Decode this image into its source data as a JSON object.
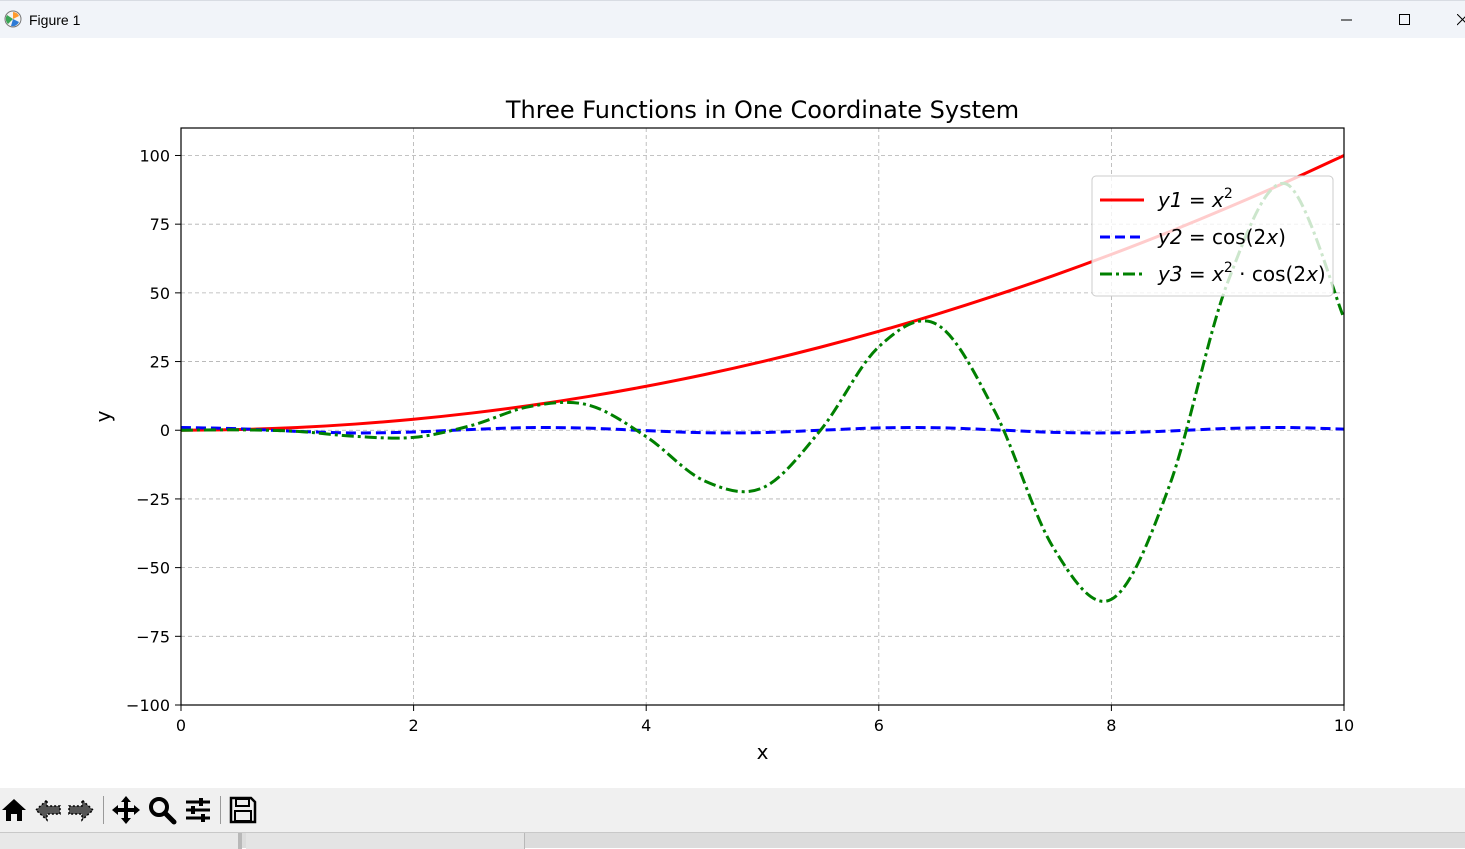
{
  "window": {
    "title": "Figure 1"
  },
  "colors": {
    "y1": "#ff0000",
    "y2": "#0000ff",
    "y3": "#008000",
    "grid": "#b0b0b0"
  },
  "icons": {
    "app": "matplotlib-icon",
    "minimize": "minimize-icon",
    "maximize": "maximize-icon",
    "close": "close-icon",
    "toolbar": [
      "home-icon",
      "back-arrow-icon",
      "forward-arrow-icon",
      "pan-icon",
      "zoom-icon",
      "configure-subplots-icon",
      "save-icon"
    ]
  },
  "chart_data": {
    "type": "line",
    "title": "Three Functions in One Coordinate System",
    "xlabel": "x",
    "ylabel": "y",
    "xlim": [
      0,
      10
    ],
    "ylim": [
      -100,
      110
    ],
    "xticks": [
      0,
      2,
      4,
      6,
      8,
      10
    ],
    "xtick_labels": [
      "0",
      "2",
      "4",
      "6",
      "8",
      "10"
    ],
    "yticks": [
      -100,
      -75,
      -50,
      -25,
      0,
      25,
      50,
      75,
      100
    ],
    "ytick_labels": [
      "−100",
      "−75",
      "−50",
      "−25",
      "0",
      "25",
      "50",
      "75",
      "100"
    ],
    "grid": true,
    "legend": "top-right",
    "x": [
      0,
      0.5,
      1,
      1.5,
      2,
      2.5,
      3,
      3.5,
      4,
      4.5,
      5,
      5.5,
      6,
      6.5,
      7,
      7.5,
      8,
      8.5,
      9,
      9.5,
      10
    ],
    "series": [
      {
        "name": "y1 = x^2",
        "style": "solid",
        "values": [
          0,
          0.25,
          1,
          2.25,
          4,
          6.25,
          9,
          12.25,
          16,
          20.25,
          25,
          30.25,
          36,
          42.25,
          49,
          56.25,
          64,
          72.25,
          81,
          90.25,
          100
        ]
      },
      {
        "name": "y2 = cos(2x)",
        "style": "dashed",
        "values": [
          1,
          0.54,
          -0.42,
          -0.99,
          -0.65,
          0.28,
          0.96,
          0.75,
          -0.15,
          -0.91,
          -0.84,
          0.0,
          0.84,
          0.91,
          0.14,
          -0.76,
          -0.96,
          -0.28,
          0.66,
          0.99,
          0.41
        ]
      },
      {
        "name": "y3 = x^2 · cos(2x)",
        "style": "dashdot",
        "values": [
          0,
          0.14,
          -0.42,
          -2.23,
          -2.61,
          1.77,
          8.64,
          9.2,
          -2.33,
          -18.4,
          -20.98,
          0.07,
          30.38,
          38.49,
          6.64,
          -42.69,
          -61.55,
          -20.06,
          53.84,
          89.7,
          40.81
        ]
      }
    ],
    "legend_entries": [
      {
        "name": "y1",
        "eq": "x",
        "sup": "2",
        "tail": ""
      },
      {
        "name": "y2",
        "eq": "cos(2",
        "sup": "",
        "tail": "x)"
      },
      {
        "name": "y3",
        "eq": "x",
        "sup": "2",
        "tail": "· cos(2x)"
      }
    ]
  }
}
